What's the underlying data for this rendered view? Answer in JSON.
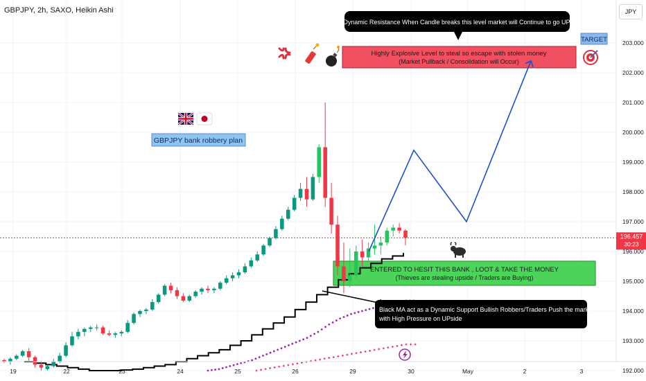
{
  "header": {
    "symbol": "GBPJPY, 2h, SAXO, Heikin Ashi",
    "currency": "JPY"
  },
  "price_axis": {
    "labels": [
      "203.000",
      "202.000",
      "201.000",
      "200.000",
      "199.000",
      "198.000",
      "197.000",
      "196.000",
      "195.000",
      "194.000",
      "193.000",
      "192.000"
    ],
    "current_price": "196.457",
    "countdown": "30:23"
  },
  "time_axis": {
    "labels": [
      "19",
      "22",
      "23",
      "24",
      "25",
      "26",
      "29",
      "30",
      "May",
      "2",
      "3"
    ]
  },
  "annotations": {
    "top_callout": "Dynamic Resistance When Candle breaks this level market will Continue to go UP",
    "red_zone_line1": "Highly Explosive Level to steal so escape with stolen money",
    "red_zone_line2": "(Market Pullback / Consolidation will Occur)",
    "target_label": "TARGET",
    "plan_label": "GBPJPY bank robbery plan",
    "green_zone_line1": "ENTERED TO HESIT THIS BANK , LOOT & TAKE THE MONEY",
    "green_zone_line2": "(Thieves are stealing upside / Traders are Buying)",
    "bottom_callout_line1": "Black MA act as a Dynamic Support Bullish Robbers/Traders Push the market",
    "bottom_callout_line2": "with High Pressure on UPside"
  },
  "colors": {
    "bull": "#089981",
    "bull_bright": "#22c55e",
    "bear": "#f23645",
    "ma_black": "#000000",
    "ma_purple": "#9c27b0",
    "ma_pink": "#e91e63",
    "projection": "#1e50c8",
    "resistance_zone": "#f0505f",
    "support_zone": "#4cd45a",
    "plan_box": "#90c4f0",
    "target_box": "#8ab8ee",
    "callout_bg": "#000000"
  },
  "icons": [
    "anger-icon",
    "firecracker-icon",
    "bomb-icon",
    "dartboard-icon",
    "uk-flag-icon",
    "japan-flag-icon",
    "bull-icon",
    "lightning-icon"
  ],
  "chart_data": {
    "type": "candlestick",
    "title": "GBPJPY, 2h, SAXO, Heikin Ashi",
    "ylim": [
      192.0,
      203.4
    ],
    "y_ticks": [
      203.0,
      202.0,
      201.0,
      200.0,
      199.0,
      198.0,
      197.0,
      196.0,
      195.0,
      194.0,
      193.0,
      192.0
    ],
    "x_ticks": [
      "19",
      "22",
      "23",
      "24",
      "25",
      "26",
      "29",
      "30",
      "May",
      "2",
      "3"
    ],
    "last_price": 196.457,
    "candles": [
      [
        192.35,
        192.4,
        192.25,
        192.3
      ],
      [
        192.3,
        192.45,
        192.2,
        192.4
      ],
      [
        192.4,
        192.55,
        192.35,
        192.5
      ],
      [
        192.5,
        192.7,
        192.45,
        192.65
      ],
      [
        192.65,
        192.75,
        192.3,
        192.45
      ],
      [
        192.45,
        192.5,
        192.1,
        192.2
      ],
      [
        192.2,
        192.3,
        192.0,
        192.1
      ],
      [
        192.05,
        192.2,
        192.0,
        192.15
      ],
      [
        192.15,
        192.4,
        192.1,
        192.3
      ],
      [
        192.3,
        192.6,
        192.25,
        192.5
      ],
      [
        192.5,
        192.95,
        192.45,
        192.85
      ],
      [
        192.85,
        193.3,
        192.8,
        193.15
      ],
      [
        193.15,
        193.4,
        193.05,
        193.3
      ],
      [
        193.3,
        193.45,
        193.15,
        193.4
      ],
      [
        193.4,
        193.5,
        193.3,
        193.45
      ],
      [
        193.45,
        193.55,
        193.35,
        193.45
      ],
      [
        193.45,
        193.5,
        193.2,
        193.25
      ],
      [
        193.25,
        193.35,
        193.15,
        193.2
      ],
      [
        193.2,
        193.3,
        193.1,
        193.25
      ],
      [
        193.25,
        193.35,
        193.15,
        193.3
      ],
      [
        193.3,
        193.7,
        193.25,
        193.6
      ],
      [
        193.6,
        193.95,
        193.55,
        193.9
      ],
      [
        193.9,
        194.05,
        193.8,
        194.0
      ],
      [
        194.0,
        194.1,
        193.9,
        194.05
      ],
      [
        194.05,
        194.4,
        194.0,
        194.3
      ],
      [
        194.3,
        194.6,
        194.25,
        194.55
      ],
      [
        194.55,
        194.9,
        194.5,
        194.85
      ],
      [
        194.85,
        194.95,
        194.6,
        194.7
      ],
      [
        194.7,
        194.8,
        194.4,
        194.5
      ],
      [
        194.5,
        194.6,
        194.3,
        194.35
      ],
      [
        194.35,
        194.55,
        194.3,
        194.5
      ],
      [
        194.5,
        194.7,
        194.45,
        194.65
      ],
      [
        194.65,
        194.8,
        194.55,
        194.75
      ],
      [
        194.75,
        194.85,
        194.6,
        194.7
      ],
      [
        194.7,
        194.8,
        194.6,
        194.75
      ],
      [
        194.75,
        195.0,
        194.7,
        194.95
      ],
      [
        194.95,
        195.2,
        194.9,
        195.1
      ],
      [
        195.1,
        195.3,
        195.0,
        195.2
      ],
      [
        195.2,
        195.4,
        195.1,
        195.3
      ],
      [
        195.3,
        195.6,
        195.25,
        195.5
      ],
      [
        195.5,
        195.8,
        195.45,
        195.7
      ],
      [
        195.7,
        196.0,
        195.65,
        195.9
      ],
      [
        195.9,
        196.25,
        195.85,
        196.2
      ],
      [
        196.2,
        196.5,
        196.15,
        196.45
      ],
      [
        196.45,
        196.85,
        196.4,
        196.75
      ],
      [
        196.75,
        197.2,
        196.7,
        197.1
      ],
      [
        197.1,
        197.5,
        197.05,
        197.4
      ],
      [
        197.4,
        197.9,
        197.35,
        197.8
      ],
      [
        197.8,
        198.3,
        197.7,
        198.1
      ],
      [
        198.1,
        198.5,
        197.5,
        197.75
      ],
      [
        197.75,
        198.6,
        197.7,
        198.5
      ],
      [
        198.5,
        199.6,
        198.3,
        199.5
      ],
      [
        199.5,
        201.0,
        197.5,
        197.8
      ],
      [
        197.8,
        198.3,
        196.6,
        196.9
      ],
      [
        196.9,
        197.2,
        195.2,
        195.5
      ],
      [
        195.5,
        196.3,
        194.6,
        195.0
      ],
      [
        195.0,
        196.1,
        194.8,
        195.2
      ],
      [
        195.2,
        196.2,
        195.1,
        196.0
      ],
      [
        196.0,
        196.4,
        195.5,
        195.8
      ],
      [
        195.8,
        196.3,
        195.7,
        196.1
      ],
      [
        196.1,
        196.9,
        195.9,
        196.2
      ],
      [
        196.2,
        196.5,
        195.9,
        196.3
      ],
      [
        196.3,
        196.8,
        196.2,
        196.7
      ],
      [
        196.7,
        196.9,
        196.5,
        196.8
      ],
      [
        196.8,
        196.95,
        196.6,
        196.7
      ],
      [
        196.7,
        196.75,
        196.2,
        196.46
      ]
    ],
    "black_ma": [
      192.3,
      192.25,
      192.2,
      192.15,
      192.1,
      192.05,
      192.0,
      192.0,
      192.0,
      192.02,
      192.05,
      192.1,
      192.15,
      192.2,
      192.3,
      192.4,
      192.5,
      192.6,
      192.7,
      192.85,
      193.0,
      193.2,
      193.4,
      193.6,
      193.8,
      194.05,
      194.3,
      194.55,
      194.8,
      195.05,
      195.25,
      195.45,
      195.6,
      195.75,
      195.85,
      195.95
    ],
    "purple_ma": [
      192.0,
      192.05,
      192.15,
      192.25,
      192.35,
      192.5,
      192.65,
      192.8,
      192.95,
      193.1,
      193.3,
      193.55,
      193.75,
      193.9,
      194.0,
      194.1,
      194.2,
      194.25,
      194.35
    ],
    "pink_ma": [
      192.0,
      192.08,
      192.16,
      192.24,
      192.32,
      192.4,
      192.48,
      192.56,
      192.64,
      192.72,
      192.8,
      192.88
    ],
    "projection": [
      {
        "x": "29",
        "y": 196.0
      },
      {
        "x": "30",
        "y": 199.4
      },
      {
        "x": "30",
        "y": 197.0
      },
      {
        "x": "May",
        "y": 202.4
      }
    ],
    "resistance_zone": [
      202.2,
      202.9
    ],
    "support_zone": [
      194.7,
      195.5
    ]
  }
}
